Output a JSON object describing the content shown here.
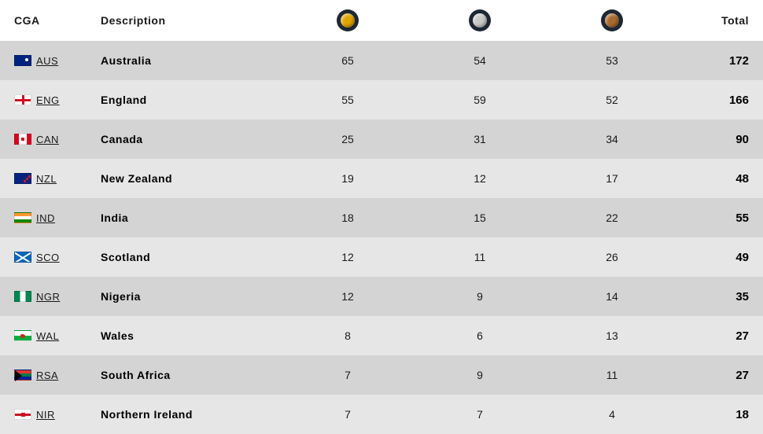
{
  "header": {
    "cga": "CGA",
    "description": "Description",
    "total": "Total",
    "medal_colors": {
      "gold": "#e0a500",
      "silver": "#c9c9c9",
      "bronze": "#a96a2e"
    },
    "medal_ring": "#1d2733"
  },
  "table": {
    "type": "table",
    "row_colors": [
      "#d4d4d4",
      "#e6e6e6"
    ],
    "text_color": "#1a1a1a",
    "columns": [
      "CGA",
      "Description",
      "Gold",
      "Silver",
      "Bronze",
      "Total"
    ],
    "rows": [
      {
        "code": "AUS",
        "flag": "flag-aus",
        "description": "Australia",
        "gold": "65",
        "silver": "54",
        "bronze": "53",
        "total": "172"
      },
      {
        "code": "ENG",
        "flag": "flag-eng",
        "description": "England",
        "gold": "55",
        "silver": "59",
        "bronze": "52",
        "total": "166"
      },
      {
        "code": "CAN",
        "flag": "flag-can",
        "description": "Canada",
        "gold": "25",
        "silver": "31",
        "bronze": "34",
        "total": "90"
      },
      {
        "code": "NZL",
        "flag": "flag-nzl",
        "description": "New Zealand",
        "gold": "19",
        "silver": "12",
        "bronze": "17",
        "total": "48"
      },
      {
        "code": "IND",
        "flag": "flag-ind",
        "description": "India",
        "gold": "18",
        "silver": "15",
        "bronze": "22",
        "total": "55"
      },
      {
        "code": "SCO",
        "flag": "flag-sco",
        "description": "Scotland",
        "gold": "12",
        "silver": "11",
        "bronze": "26",
        "total": "49"
      },
      {
        "code": "NGR",
        "flag": "flag-ngr",
        "description": "Nigeria",
        "gold": "12",
        "silver": "9",
        "bronze": "14",
        "total": "35"
      },
      {
        "code": "WAL",
        "flag": "flag-wal",
        "description": "Wales",
        "gold": "8",
        "silver": "6",
        "bronze": "13",
        "total": "27"
      },
      {
        "code": "RSA",
        "flag": "flag-rsa",
        "description": "South Africa",
        "gold": "7",
        "silver": "9",
        "bronze": "11",
        "total": "27"
      },
      {
        "code": "NIR",
        "flag": "flag-nir",
        "description": "Northern Ireland",
        "gold": "7",
        "silver": "7",
        "bronze": "4",
        "total": "18"
      }
    ]
  }
}
